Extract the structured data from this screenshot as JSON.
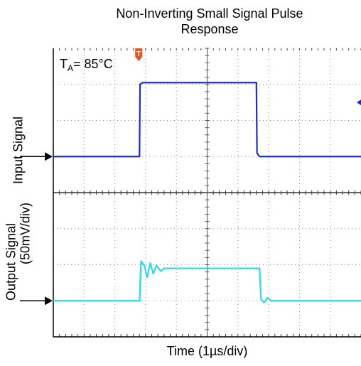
{
  "chart_data": {
    "type": "line",
    "title_line1": "Non-Inverting Small Signal Pulse",
    "title_line2": "Response",
    "xlabel": "Time (1µs/div)",
    "ylabel_input": "Input Signal",
    "ylabel_output": "Output Signal",
    "ylabel_scale": "(50mV/div)",
    "annotation_temp_prefix": "T",
    "annotation_temp_sub": "A",
    "annotation_temp_value": "= 85°C",
    "trigger_marker": "T",
    "x_divisions": 10,
    "y_divisions": 8,
    "grid": true,
    "series": [
      {
        "color": "#1f2fbf",
        "x": [
          0,
          2.8,
          2.82,
          2.9,
          6.6,
          6.62,
          6.7,
          10
        ],
        "y": [
          5,
          5,
          7.0,
          7.05,
          7.05,
          5.1,
          5.0,
          5.0
        ]
      },
      {
        "color": "#2fd8e8",
        "x": [
          0,
          2.8,
          2.85,
          2.95,
          3.05,
          3.15,
          3.25,
          3.35,
          3.5,
          3.6,
          6.7,
          6.75,
          6.85,
          6.95,
          7.1,
          10
        ],
        "y": [
          1,
          1,
          2.1,
          2.0,
          1.65,
          2.05,
          1.75,
          1.98,
          1.82,
          1.9,
          1.9,
          1.05,
          0.95,
          1.08,
          1.0,
          1.0
        ]
      }
    ],
    "colors": {
      "trigger": "#e8541c",
      "marker": "#1f2fbf",
      "axis": "#000000"
    }
  }
}
